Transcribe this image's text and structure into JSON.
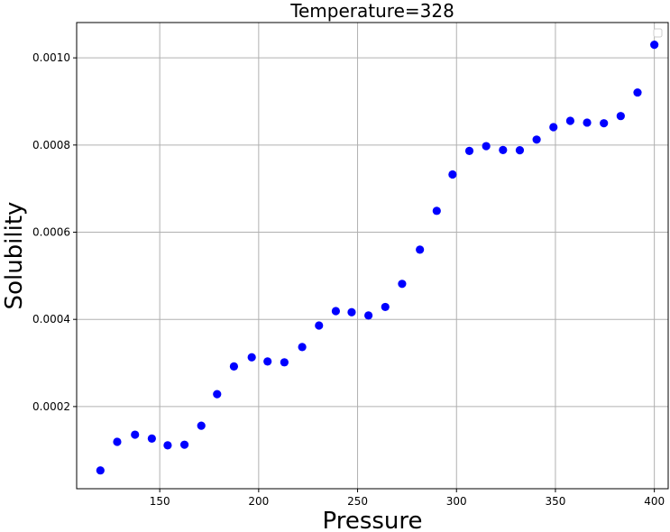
{
  "chart_data": {
    "type": "scatter",
    "title": "Temperature=328",
    "xlabel": "Pressure",
    "ylabel": "Solubility",
    "xlim": [
      108,
      407
    ],
    "ylim": [
      1.15e-05,
      0.001081
    ],
    "xticks": [
      150,
      200,
      250,
      300,
      350,
      400
    ],
    "xtick_labels": [
      "150",
      "200",
      "250",
      "300",
      "350",
      "400"
    ],
    "yticks": [
      0.0002,
      0.0004,
      0.0006,
      0.0008,
      0.001
    ],
    "ytick_labels": [
      "0.0002",
      "0.0004",
      "0.0006",
      "0.0008",
      "0.0010"
    ],
    "grid": true,
    "legend": "top-right (empty)",
    "marker_color": "#0000ff",
    "points": [
      {
        "x": 120,
        "y": 5.35e-05
      },
      {
        "x": 128.5,
        "y": 0.000119
      },
      {
        "x": 137.5,
        "y": 0.0001355
      },
      {
        "x": 146,
        "y": 0.0001265
      },
      {
        "x": 154,
        "y": 0.000111
      },
      {
        "x": 162.5,
        "y": 0.0001125
      },
      {
        "x": 171,
        "y": 0.000156
      },
      {
        "x": 179,
        "y": 0.0002285
      },
      {
        "x": 187.5,
        "y": 0.000292
      },
      {
        "x": 196.5,
        "y": 0.000313
      },
      {
        "x": 204.5,
        "y": 0.0003035
      },
      {
        "x": 213,
        "y": 0.0003015
      },
      {
        "x": 222,
        "y": 0.0003365
      },
      {
        "x": 230.5,
        "y": 0.000386
      },
      {
        "x": 239,
        "y": 0.000419
      },
      {
        "x": 247,
        "y": 0.0004165
      },
      {
        "x": 255.5,
        "y": 0.000409
      },
      {
        "x": 264,
        "y": 0.0004285
      },
      {
        "x": 272.5,
        "y": 0.0004815
      },
      {
        "x": 281.5,
        "y": 0.00056
      },
      {
        "x": 290,
        "y": 0.000649
      },
      {
        "x": 298,
        "y": 0.0007325
      },
      {
        "x": 306.5,
        "y": 0.0007865
      },
      {
        "x": 315,
        "y": 0.0007975
      },
      {
        "x": 323.5,
        "y": 0.0007885
      },
      {
        "x": 332,
        "y": 0.000788
      },
      {
        "x": 340.5,
        "y": 0.0008125
      },
      {
        "x": 349,
        "y": 0.000841
      },
      {
        "x": 357.5,
        "y": 0.0008555
      },
      {
        "x": 366,
        "y": 0.0008515
      },
      {
        "x": 374.5,
        "y": 0.00085
      },
      {
        "x": 383,
        "y": 0.0008665
      },
      {
        "x": 391.5,
        "y": 0.0009205
      },
      {
        "x": 400,
        "y": 0.00103
      }
    ]
  }
}
